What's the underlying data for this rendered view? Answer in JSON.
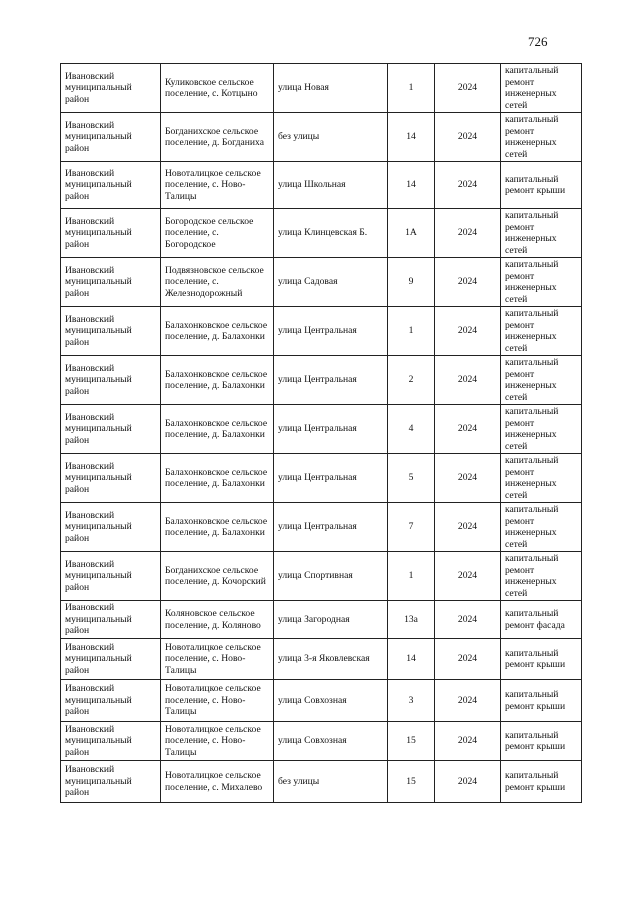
{
  "page_number": "726",
  "rows": [
    {
      "district": "Ивановский муниципальный район",
      "settlement": "Куликовское сельское поселение, с. Котцыно",
      "street": "улица Новая",
      "house": "1",
      "year": "2024",
      "work": "капитальный ремонт инженерных сетей"
    },
    {
      "district": "Ивановский муниципальный район",
      "settlement": "Богданихское сельское поселение, д. Богданиха",
      "street": "без улицы",
      "house": "14",
      "year": "2024",
      "work": "капитальный ремонт инженерных сетей"
    },
    {
      "district": "Ивановский муниципальный район",
      "settlement": "Новоталицкое сельское поселение, с. Ново-Талицы",
      "street": "улица Школьная",
      "house": "14",
      "year": "2024",
      "work": "капитальный ремонт крыши"
    },
    {
      "district": "Ивановский муниципальный район",
      "settlement": "Богородское сельское поселение, с. Богородское",
      "street": "улица Клинцевская Б.",
      "house": "1А",
      "year": "2024",
      "work": "капитальный ремонт инженерных сетей"
    },
    {
      "district": "Ивановский муниципальный район",
      "settlement": "Подвязновское сельское поселение, с. Железнодорожный",
      "street": "улица Садовая",
      "house": "9",
      "year": "2024",
      "work": "капитальный ремонт инженерных сетей"
    },
    {
      "district": "Ивановский муниципальный район",
      "settlement": "Балахонковское сельское поселение, д. Балахонки",
      "street": "улица Центральная",
      "house": "1",
      "year": "2024",
      "work": "капитальный ремонт инженерных сетей"
    },
    {
      "district": "Ивановский муниципальный район",
      "settlement": "Балахонковское сельское поселение, д. Балахонки",
      "street": "улица Центральная",
      "house": "2",
      "year": "2024",
      "work": "капитальный ремонт инженерных сетей"
    },
    {
      "district": "Ивановский муниципальный район",
      "settlement": "Балахонковское сельское поселение, д. Балахонки",
      "street": "улица Центральная",
      "house": "4",
      "year": "2024",
      "work": "капитальный ремонт инженерных сетей"
    },
    {
      "district": "Ивановский муниципальный район",
      "settlement": "Балахонковское сельское поселение, д. Балахонки",
      "street": "улица Центральная",
      "house": "5",
      "year": "2024",
      "work": "капитальный ремонт инженерных сетей"
    },
    {
      "district": "Ивановский муниципальный район",
      "settlement": "Балахонковское сельское поселение, д. Балахонки",
      "street": "улица Центральная",
      "house": "7",
      "year": "2024",
      "work": "капитальный ремонт инженерных сетей"
    },
    {
      "district": "Ивановский муниципальный район",
      "settlement": "Богданихское сельское поселение, д. Кочорский",
      "street": "улица Спортивная",
      "house": "1",
      "year": "2024",
      "work": "капитальный ремонт инженерных сетей"
    },
    {
      "district": "Ивановский муниципальный район",
      "settlement": "Коляновское сельское поселение, д. Коляново",
      "street": "улица Загородная",
      "house": "13а",
      "year": "2024",
      "work": "капитальный ремонт фасада"
    },
    {
      "district": "Ивановский муниципальный район",
      "settlement": "Новоталицкое сельское поселение, с. Ново-Талицы",
      "street": "улица 3-я Яковлевская",
      "house": "14",
      "year": "2024",
      "work": "капитальный ремонт крыши"
    },
    {
      "district": "Ивановский муниципальный район",
      "settlement": "Новоталицкое сельское поселение, с. Ново-Талицы",
      "street": "улица Совхозная",
      "house": "3",
      "year": "2024",
      "work": "капитальный ремонт крыши"
    },
    {
      "district": "Ивановский муниципальный район",
      "settlement": "Новоталицкое сельское поселение, с. Ново-Талицы",
      "street": "улица Совхозная",
      "house": "15",
      "year": "2024",
      "work": "капитальный ремонт крыши"
    },
    {
      "district": "Ивановский муниципальный район",
      "settlement": "Новоталицкое сельское поселение, с. Михалево",
      "street": "без улицы",
      "house": "15",
      "year": "2024",
      "work": "капитальный ремонт крыши"
    }
  ]
}
